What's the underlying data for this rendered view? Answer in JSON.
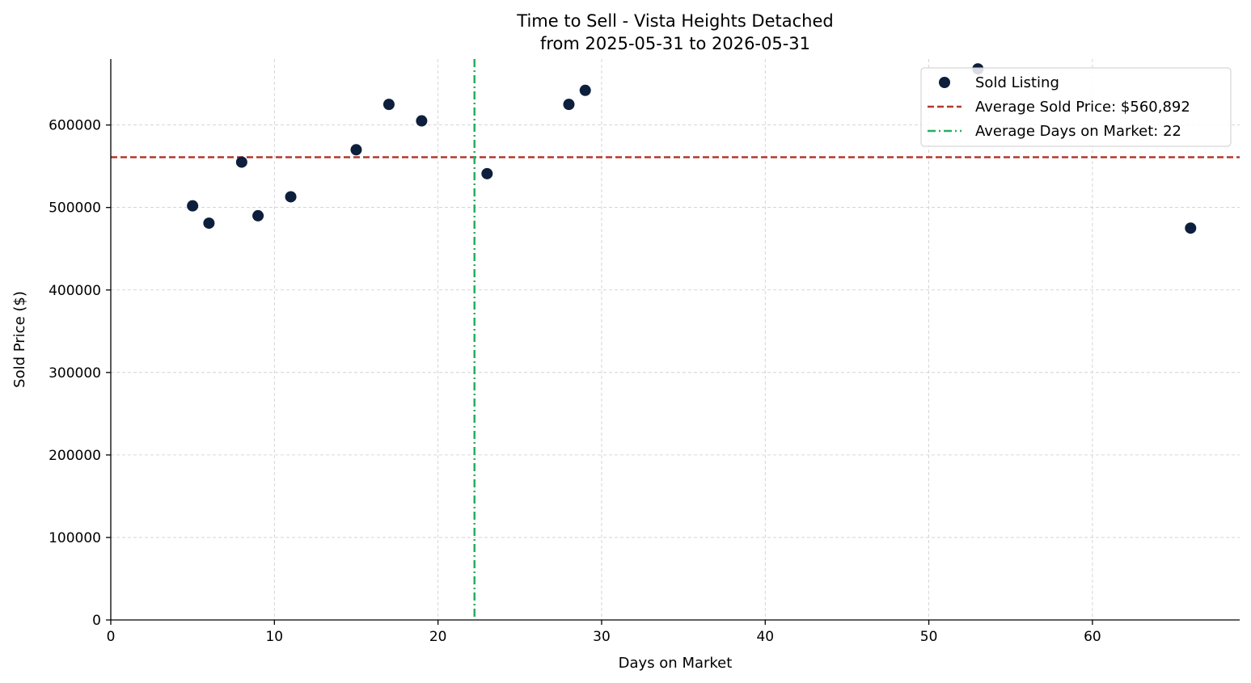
{
  "chart_data": {
    "type": "scatter",
    "title_line1": "Time to Sell - Vista Heights Detached",
    "title_line2": "from 2025-05-31 to 2026-05-31",
    "xlabel": "Days on Market",
    "ylabel": "Sold Price ($)",
    "xlim": [
      0,
      69
    ],
    "ylim": [
      0,
      680000
    ],
    "xticks": [
      0,
      10,
      20,
      30,
      40,
      50,
      60
    ],
    "yticks": [
      0,
      100000,
      200000,
      300000,
      400000,
      500000,
      600000
    ],
    "grid": true,
    "legend_position": "top-right",
    "series": [
      {
        "name": "Sold Listing",
        "color": "#0d1f3c",
        "points": [
          {
            "x": 5,
            "y": 502000
          },
          {
            "x": 6,
            "y": 481000
          },
          {
            "x": 8,
            "y": 555000
          },
          {
            "x": 9,
            "y": 490000
          },
          {
            "x": 11,
            "y": 513000
          },
          {
            "x": 15,
            "y": 570000
          },
          {
            "x": 17,
            "y": 625000
          },
          {
            "x": 19,
            "y": 605000
          },
          {
            "x": 23,
            "y": 541000
          },
          {
            "x": 28,
            "y": 625000
          },
          {
            "x": 29,
            "y": 642000
          },
          {
            "x": 53,
            "y": 668000
          },
          {
            "x": 66,
            "y": 475000
          }
        ]
      }
    ],
    "reference_lines": [
      {
        "orientation": "horizontal",
        "value": 560892,
        "label": "Average Sold Price: $560,892",
        "color": "#b03a2e",
        "style": "dashed"
      },
      {
        "orientation": "vertical",
        "value": 22.23,
        "label": "Average Days on Market: 22",
        "color": "#27ae60",
        "style": "dashdot"
      }
    ]
  }
}
